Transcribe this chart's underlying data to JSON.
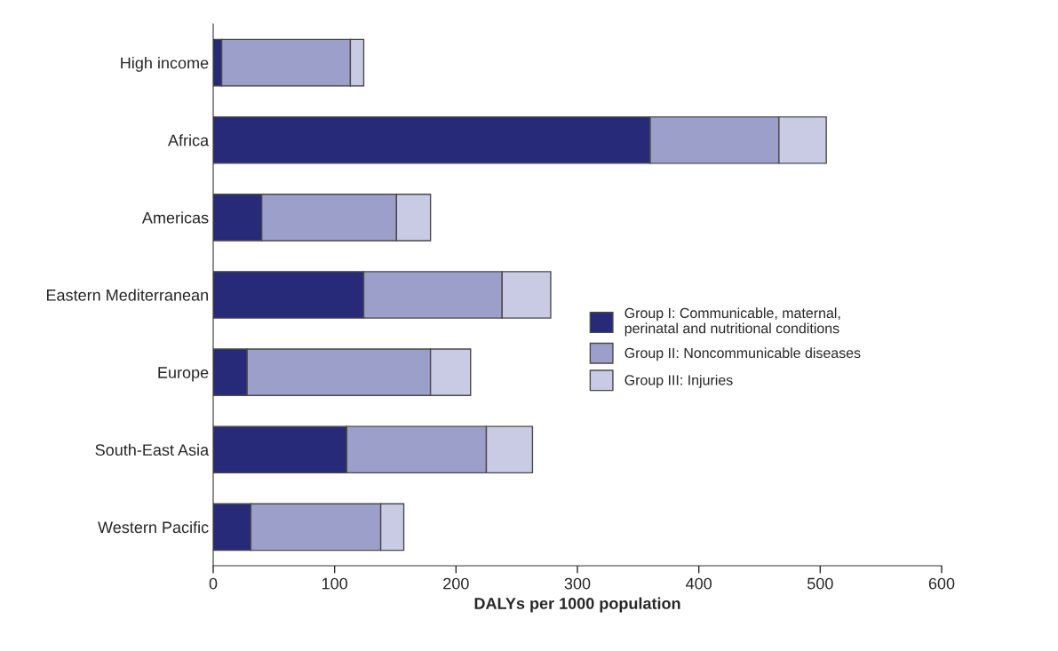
{
  "chart_data": {
    "type": "bar",
    "orientation": "horizontal",
    "stacked": true,
    "categories": [
      "High income",
      "Africa",
      "Americas",
      "Eastern Mediterranean",
      "Europe",
      "South-East Asia",
      "Western Pacific"
    ],
    "series": [
      {
        "name": "Group I: Communicable, maternal, perinatal and nutritional conditions",
        "color": "#262a78",
        "values": [
          7,
          360,
          40,
          124,
          28,
          110,
          31
        ]
      },
      {
        "name": "Group II: Noncommunicable diseases",
        "color": "#9c9fc9",
        "values": [
          106,
          106,
          111,
          114,
          151,
          115,
          107
        ]
      },
      {
        "name": "Group III: Injuries",
        "color": "#c9cbe4",
        "values": [
          11,
          39,
          28,
          40,
          33,
          38,
          19
        ]
      }
    ],
    "xlabel": "DALYs per 1000 population",
    "xlim": [
      0,
      600
    ],
    "xticks": [
      0,
      100,
      200,
      300,
      400,
      500,
      600
    ],
    "legend": "right",
    "grid": false
  }
}
